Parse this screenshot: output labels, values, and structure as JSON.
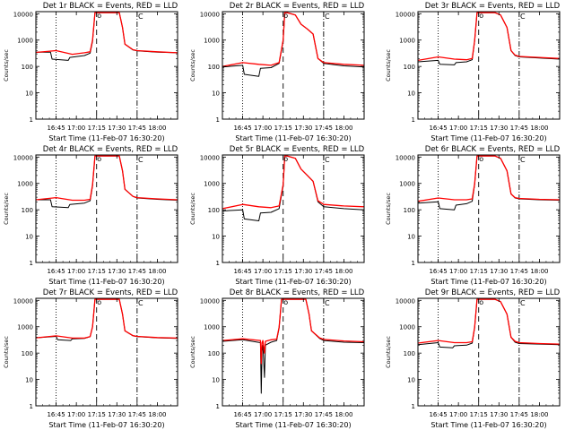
{
  "figure": {
    "xlabel": "Start Time (11-Feb-07 16:30:20)",
    "ylabel": "Counts/sec",
    "x_ticks": [
      "16:45",
      "17:00",
      "17:15",
      "17:30",
      "17:45",
      "18:00"
    ],
    "y_ticks": [
      "1",
      "10",
      "100",
      "1000",
      "10000"
    ],
    "markers": {
      "o": "o",
      "c": "C"
    },
    "colors": {
      "events": "#000000",
      "lld": "#ff0000",
      "axis": "#000000"
    }
  },
  "chart_data": [
    {
      "type": "line",
      "title": "Det 1r BLACK = Events, RED = LLD",
      "xlabel": "Start Time (11-Feb-07 16:30:20)",
      "ylabel": "Counts/sec",
      "xlim": [
        16.5,
        18.25
      ],
      "ylim": [
        1,
        12000
      ],
      "yscale": "log",
      "vlines": {
        "dotted": 16.75,
        "dashed": 17.25,
        "dashdot": 17.75
      },
      "series": [
        {
          "name": "Events",
          "color": "#000000",
          "x": [
            16.5,
            16.68,
            16.7,
            16.9,
            16.92,
            17.1,
            17.17,
            17.2,
            17.23,
            17.27,
            17.5,
            17.53,
            17.57,
            17.6,
            17.7,
            17.75,
            18.0,
            18.25
          ],
          "y": [
            350,
            350,
            190,
            170,
            220,
            260,
            320,
            900,
            11000,
            11000,
            11000,
            11000,
            3000,
            700,
            420,
            390,
            350,
            330
          ]
        },
        {
          "name": "LLD",
          "color": "#ff0000",
          "x": [
            16.5,
            16.75,
            16.95,
            17.1,
            17.17,
            17.2,
            17.23,
            17.27,
            17.5,
            17.53,
            17.57,
            17.6,
            17.7,
            17.75,
            18.0,
            18.25
          ],
          "y": [
            340,
            400,
            290,
            330,
            360,
            1000,
            11000,
            11000,
            11000,
            11000,
            3000,
            700,
            430,
            400,
            360,
            330
          ]
        }
      ]
    },
    {
      "type": "line",
      "title": "Det 2r BLACK = Events, RED = LLD",
      "xlabel": "Start Time (11-Feb-07 16:30:20)",
      "ylabel": "Counts/sec",
      "xlim": [
        16.5,
        18.25
      ],
      "ylim": [
        1,
        12000
      ],
      "yscale": "log",
      "vlines": {
        "dotted": 16.75,
        "dashed": 17.25,
        "dashdot": 17.75
      },
      "series": [
        {
          "name": "Events",
          "color": "#000000",
          "x": [
            16.5,
            16.75,
            16.77,
            16.95,
            16.97,
            17.1,
            17.2,
            17.25,
            17.27,
            17.3,
            17.4,
            17.47,
            17.55,
            17.62,
            17.68,
            17.75,
            18.0,
            18.25
          ],
          "y": [
            95,
            110,
            50,
            42,
            85,
            90,
            130,
            900,
            11000,
            11000,
            9000,
            4000,
            2600,
            1700,
            200,
            130,
            105,
            95
          ]
        },
        {
          "name": "LLD",
          "color": "#ff0000",
          "x": [
            16.5,
            16.75,
            16.95,
            17.1,
            17.2,
            17.25,
            17.27,
            17.3,
            17.4,
            17.47,
            17.55,
            17.62,
            17.68,
            17.75,
            18.0,
            18.25
          ],
          "y": [
            100,
            140,
            120,
            110,
            140,
            1000,
            11000,
            11000,
            9000,
            4000,
            2600,
            1700,
            200,
            140,
            120,
            110
          ]
        }
      ]
    },
    {
      "type": "line",
      "title": "Det 3r BLACK = Events, RED = LLD",
      "xlabel": "Start Time (11-Feb-07 16:30:20)",
      "ylabel": "Counts/sec",
      "xlim": [
        16.5,
        18.25
      ],
      "ylim": [
        1,
        12000
      ],
      "yscale": "log",
      "vlines": {
        "dotted": 16.75,
        "dashed": 17.25,
        "dashdot": 17.75
      },
      "series": [
        {
          "name": "Events",
          "color": "#000000",
          "x": [
            16.5,
            16.75,
            16.77,
            16.95,
            16.97,
            17.1,
            17.17,
            17.2,
            17.23,
            17.3,
            17.45,
            17.52,
            17.6,
            17.65,
            17.7,
            17.75,
            18.0,
            18.25
          ],
          "y": [
            150,
            170,
            120,
            115,
            140,
            150,
            180,
            900,
            11000,
            11000,
            11000,
            9000,
            3000,
            400,
            260,
            230,
            210,
            190
          ]
        },
        {
          "name": "LLD",
          "color": "#ff0000",
          "x": [
            16.5,
            16.75,
            16.95,
            17.1,
            17.17,
            17.2,
            17.23,
            17.3,
            17.45,
            17.52,
            17.6,
            17.65,
            17.7,
            17.75,
            18.0,
            18.25
          ],
          "y": [
            170,
            230,
            190,
            180,
            200,
            950,
            11000,
            11000,
            11000,
            9000,
            3000,
            400,
            270,
            240,
            220,
            200
          ]
        }
      ]
    },
    {
      "type": "line",
      "title": "Det 4r BLACK = Events, RED = LLD",
      "xlabel": "Start Time (11-Feb-07 16:30:20)",
      "ylabel": "Counts/sec",
      "xlim": [
        16.5,
        18.25
      ],
      "ylim": [
        1,
        12000
      ],
      "yscale": "log",
      "vlines": {
        "dotted": 16.75,
        "dashed": 17.25,
        "dashdot": 17.75
      },
      "series": [
        {
          "name": "Events",
          "color": "#000000",
          "x": [
            16.5,
            16.68,
            16.7,
            16.9,
            16.92,
            17.1,
            17.17,
            17.2,
            17.23,
            17.28,
            17.5,
            17.53,
            17.57,
            17.6,
            17.7,
            17.75,
            18.0,
            18.25
          ],
          "y": [
            240,
            240,
            130,
            120,
            160,
            180,
            220,
            800,
            11000,
            11000,
            11000,
            11000,
            3000,
            600,
            320,
            280,
            250,
            230
          ]
        },
        {
          "name": "LLD",
          "color": "#ff0000",
          "x": [
            16.5,
            16.75,
            16.95,
            17.1,
            17.17,
            17.2,
            17.23,
            17.28,
            17.5,
            17.53,
            17.57,
            17.6,
            17.7,
            17.75,
            18.0,
            18.25
          ],
          "y": [
            240,
            290,
            230,
            230,
            250,
            900,
            11000,
            11000,
            11000,
            11000,
            3000,
            600,
            320,
            290,
            260,
            240
          ]
        }
      ]
    },
    {
      "type": "line",
      "title": "Det 5r BLACK = Events, RED = LLD",
      "xlabel": "Start Time (11-Feb-07 16:30:20)",
      "ylabel": "Counts/sec",
      "xlim": [
        16.5,
        18.25
      ],
      "ylim": [
        1,
        12000
      ],
      "yscale": "log",
      "vlines": {
        "dotted": 16.75,
        "dashed": 17.25,
        "dashdot": 17.75
      },
      "series": [
        {
          "name": "Events",
          "color": "#000000",
          "x": [
            16.5,
            16.75,
            16.77,
            16.95,
            16.97,
            17.1,
            17.2,
            17.25,
            17.27,
            17.3,
            17.4,
            17.47,
            17.55,
            17.62,
            17.68,
            17.75,
            18.0,
            18.25
          ],
          "y": [
            90,
            100,
            45,
            38,
            75,
            80,
            110,
            800,
            11000,
            11000,
            9000,
            3500,
            2000,
            1200,
            200,
            130,
            110,
            100
          ]
        },
        {
          "name": "LLD",
          "color": "#ff0000",
          "x": [
            16.5,
            16.75,
            16.95,
            17.1,
            17.2,
            17.25,
            17.27,
            17.3,
            17.4,
            17.47,
            17.55,
            17.62,
            17.68,
            17.75,
            18.0,
            18.25
          ],
          "y": [
            110,
            160,
            130,
            120,
            140,
            900,
            11000,
            11000,
            9000,
            3500,
            2000,
            1200,
            220,
            160,
            140,
            130
          ]
        }
      ]
    },
    {
      "type": "line",
      "title": "Det 6r BLACK = Events, RED = LLD",
      "xlabel": "Start Time (11-Feb-07 16:30:20)",
      "ylabel": "Counts/sec",
      "xlim": [
        16.5,
        18.25
      ],
      "ylim": [
        1,
        12000
      ],
      "yscale": "log",
      "vlines": {
        "dotted": 16.75,
        "dashed": 17.25,
        "dashdot": 17.75
      },
      "series": [
        {
          "name": "Events",
          "color": "#000000",
          "x": [
            16.5,
            16.75,
            16.77,
            16.95,
            16.97,
            17.1,
            17.17,
            17.2,
            17.23,
            17.3,
            17.45,
            17.52,
            17.6,
            17.65,
            17.7,
            17.75,
            18.0,
            18.25
          ],
          "y": [
            180,
            200,
            110,
            100,
            150,
            170,
            210,
            900,
            11000,
            11000,
            11000,
            9000,
            3000,
            400,
            280,
            260,
            240,
            230
          ]
        },
        {
          "name": "LLD",
          "color": "#ff0000",
          "x": [
            16.5,
            16.75,
            16.95,
            17.1,
            17.17,
            17.2,
            17.23,
            17.3,
            17.45,
            17.52,
            17.6,
            17.65,
            17.7,
            17.75,
            18.0,
            18.25
          ],
          "y": [
            210,
            280,
            240,
            240,
            260,
            950,
            11000,
            11000,
            11000,
            9000,
            3000,
            400,
            290,
            270,
            250,
            240
          ]
        }
      ]
    },
    {
      "type": "line",
      "title": "Det 7r BLACK = Events, RED = LLD",
      "xlabel": "Start Time (11-Feb-07 16:30:20)",
      "ylabel": "Counts/sec",
      "xlim": [
        16.5,
        18.25
      ],
      "ylim": [
        1,
        12000
      ],
      "yscale": "log",
      "vlines": {
        "dotted": 16.75,
        "dashed": 17.25,
        "dashdot": 17.75
      },
      "series": [
        {
          "name": "Events",
          "color": "#000000",
          "x": [
            16.5,
            16.75,
            16.77,
            16.93,
            16.95,
            17.1,
            17.17,
            17.2,
            17.23,
            17.27,
            17.5,
            17.53,
            17.57,
            17.6,
            17.7,
            17.75,
            18.0,
            18.25
          ],
          "y": [
            380,
            430,
            320,
            300,
            350,
            360,
            420,
            1000,
            11000,
            11000,
            11000,
            11000,
            3000,
            700,
            450,
            420,
            380,
            360
          ]
        },
        {
          "name": "LLD",
          "color": "#ff0000",
          "x": [
            16.5,
            16.75,
            16.95,
            17.1,
            17.17,
            17.2,
            17.23,
            17.27,
            17.5,
            17.53,
            17.57,
            17.6,
            17.7,
            17.75,
            18.0,
            18.25
          ],
          "y": [
            380,
            450,
            370,
            370,
            420,
            1000,
            11000,
            11000,
            11000,
            11000,
            3000,
            700,
            460,
            430,
            390,
            370
          ]
        }
      ]
    },
    {
      "type": "line",
      "title": "Det 8r BLACK = Events, RED = LLD",
      "xlabel": "Start Time (11-Feb-07 16:30:20)",
      "ylabel": "Counts/sec",
      "xlim": [
        16.5,
        18.25
      ],
      "ylim": [
        1,
        12000
      ],
      "yscale": "log",
      "vlines": {
        "dotted": 16.75,
        "dashed": 17.25,
        "dashdot": 17.75
      },
      "series": [
        {
          "name": "Events",
          "color": "#000000",
          "x": [
            16.5,
            16.75,
            16.97,
            16.98,
            16.99,
            17.0,
            17.02,
            17.03,
            17.1,
            17.17,
            17.2,
            17.23,
            17.27,
            17.5,
            17.53,
            17.57,
            17.6,
            17.7,
            17.75,
            18.0,
            18.25
          ],
          "y": [
            280,
            320,
            250,
            3,
            120,
            200,
            12,
            200,
            260,
            300,
            900,
            11000,
            11000,
            11000,
            11000,
            3000,
            700,
            360,
            300,
            260,
            250
          ]
        },
        {
          "name": "LLD",
          "color": "#ff0000",
          "x": [
            16.5,
            16.75,
            16.97,
            16.98,
            16.99,
            17.0,
            17.02,
            17.03,
            17.1,
            17.17,
            17.2,
            17.23,
            17.27,
            17.5,
            17.53,
            17.57,
            17.6,
            17.7,
            17.75,
            18.0,
            18.25
          ],
          "y": [
            300,
            350,
            300,
            40,
            250,
            300,
            100,
            280,
            320,
            340,
            950,
            11000,
            11000,
            11000,
            11000,
            3000,
            700,
            380,
            330,
            290,
            270
          ]
        }
      ]
    },
    {
      "type": "line",
      "title": "Det 9r BLACK = Events, RED = LLD",
      "xlabel": "Start Time (11-Feb-07 16:30:20)",
      "ylabel": "Counts/sec",
      "xlim": [
        16.5,
        18.25
      ],
      "ylim": [
        1,
        12000
      ],
      "yscale": "log",
      "vlines": {
        "dotted": 16.75,
        "dashed": 17.25,
        "dashdot": 17.75
      },
      "series": [
        {
          "name": "Events",
          "color": "#000000",
          "x": [
            16.5,
            16.75,
            16.77,
            16.93,
            16.95,
            17.1,
            17.17,
            17.2,
            17.23,
            17.3,
            17.45,
            17.52,
            17.6,
            17.65,
            17.7,
            17.75,
            18.0,
            18.25
          ],
          "y": [
            210,
            250,
            170,
            160,
            190,
            200,
            240,
            900,
            11000,
            11000,
            11000,
            9000,
            3000,
            400,
            260,
            230,
            220,
            210
          ]
        },
        {
          "name": "LLD",
          "color": "#ff0000",
          "x": [
            16.5,
            16.75,
            16.95,
            17.1,
            17.17,
            17.2,
            17.23,
            17.3,
            17.45,
            17.52,
            17.6,
            17.65,
            17.7,
            17.75,
            18.0,
            18.25
          ],
          "y": [
            240,
            300,
            250,
            250,
            270,
            950,
            11000,
            11000,
            11000,
            9000,
            3000,
            400,
            280,
            250,
            230,
            220
          ]
        }
      ]
    }
  ]
}
